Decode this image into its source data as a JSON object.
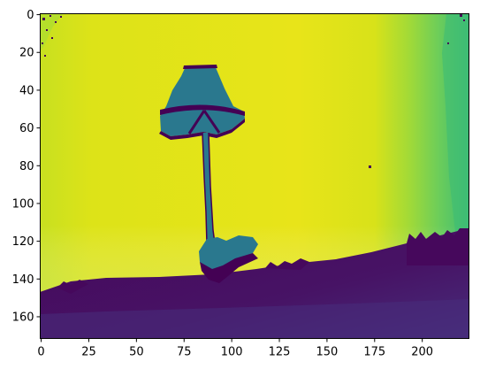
{
  "figure": {
    "kind": "depth-map image plot (viridis colormap)",
    "colormap": "viridis",
    "colors": {
      "high": "#dfe318",
      "upper": "#b5de2b",
      "mid_green": "#3dbc74",
      "teal": "#2a788e",
      "low_purple": "#471365",
      "lowest": "#440154",
      "axis": "#000000",
      "background": "#ffffff"
    },
    "x_ticks": [
      "0",
      "25",
      "50",
      "75",
      "100",
      "125",
      "150",
      "175",
      "200"
    ],
    "y_ticks": [
      "0",
      "20",
      "40",
      "60",
      "80",
      "100",
      "120",
      "140",
      "160"
    ],
    "x_tick_values": [
      0,
      25,
      50,
      75,
      100,
      125,
      150,
      175,
      200
    ],
    "y_tick_values": [
      0,
      20,
      40,
      60,
      80,
      100,
      120,
      140,
      160
    ],
    "x_range": [
      0,
      224
    ],
    "y_range": [
      0,
      171
    ],
    "y_axis_inverted": true,
    "scene": "floor lamp silhouette in front of wall, dark floor region at bottom"
  }
}
